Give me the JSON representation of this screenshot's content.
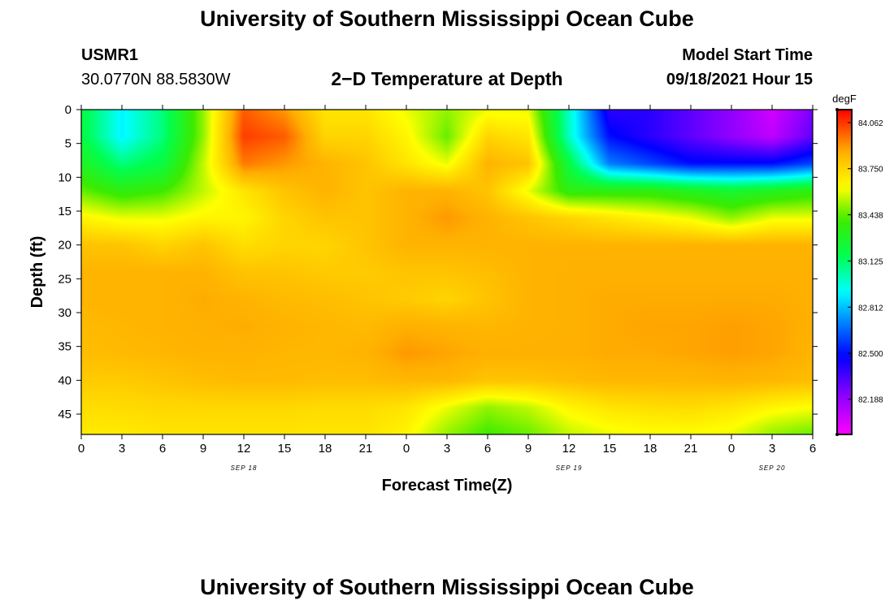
{
  "header": {
    "title": "University of Southern Mississippi Ocean Cube",
    "station_id": "USMR1",
    "location": "30.0770N  88.5830W",
    "plot_title": "2−D Temperature at Depth",
    "start_label": "Model Start Time",
    "start_value": "09/18/2021 Hour 15"
  },
  "footer": {
    "title": "University of Southern Mississippi Ocean Cube"
  },
  "chart_data": {
    "type": "heatmap",
    "title": "2-D Temperature at Depth",
    "xlabel": "Forecast Time(Z)",
    "ylabel": "Depth (ft)",
    "xlim": [
      0,
      54
    ],
    "ylim": [
      0,
      48
    ],
    "x_ticks": [
      0,
      3,
      6,
      9,
      12,
      15,
      18,
      21,
      24,
      27,
      30,
      33,
      36,
      39,
      42,
      45,
      48,
      51,
      54
    ],
    "x_tick_labels": [
      "0",
      "3",
      "6",
      "9",
      "12",
      "15",
      "18",
      "21",
      "0",
      "3",
      "6",
      "9",
      "12",
      "15",
      "18",
      "21",
      "0",
      "3",
      "6"
    ],
    "y_ticks": [
      0,
      5,
      10,
      15,
      20,
      25,
      30,
      35,
      40,
      45
    ],
    "y_tick_labels": [
      "0",
      "5",
      "10",
      "15",
      "20",
      "25",
      "30",
      "35",
      "40",
      "45"
    ],
    "date_labels": [
      {
        "x": 12,
        "text": "SEP 18"
      },
      {
        "x": 36,
        "text": "SEP 19"
      },
      {
        "x": 51,
        "text": "SEP 20"
      }
    ],
    "colorbar": {
      "unit": "degF",
      "min": 81.95,
      "max": 84.15,
      "ticks": [
        84.062,
        83.75,
        83.438,
        83.125,
        82.812,
        82.5,
        82.188
      ],
      "tick_labels": [
        "84.062",
        "83.750",
        "83.438",
        "83.125",
        "82.812",
        "82.500",
        "82.188"
      ]
    },
    "grid_x": [
      0,
      3,
      6,
      9,
      12,
      15,
      18,
      21,
      24,
      27,
      30,
      33,
      36,
      39,
      42,
      45,
      48,
      51,
      54
    ],
    "grid_y": [
      0,
      4,
      8,
      12,
      16,
      20,
      24,
      28,
      32,
      36,
      40,
      44,
      48
    ],
    "values": [
      [
        83.2,
        82.9,
        83.1,
        83.5,
        84.0,
        83.9,
        83.7,
        83.7,
        83.6,
        83.5,
        83.6,
        83.6,
        83.0,
        82.4,
        82.4,
        82.3,
        82.2,
        82.05,
        82.25
      ],
      [
        83.2,
        82.9,
        83.1,
        83.5,
        84.05,
        84.0,
        83.75,
        83.75,
        83.65,
        83.45,
        83.75,
        83.7,
        83.0,
        82.5,
        82.4,
        82.3,
        82.2,
        82.1,
        82.3
      ],
      [
        83.3,
        83.1,
        83.2,
        83.55,
        83.95,
        83.9,
        83.85,
        83.8,
        83.7,
        83.6,
        83.85,
        83.8,
        83.2,
        82.7,
        82.6,
        82.5,
        82.5,
        82.5,
        82.6
      ],
      [
        83.45,
        83.35,
        83.4,
        83.55,
        83.7,
        83.8,
        83.85,
        83.8,
        83.85,
        83.85,
        83.8,
        83.6,
        83.35,
        83.35,
        83.35,
        83.3,
        83.25,
        83.3,
        83.35
      ],
      [
        83.65,
        83.6,
        83.6,
        83.65,
        83.65,
        83.75,
        83.8,
        83.8,
        83.85,
        83.9,
        83.85,
        83.8,
        83.75,
        83.7,
        83.65,
        83.6,
        83.5,
        83.6,
        83.6
      ],
      [
        83.8,
        83.8,
        83.75,
        83.8,
        83.72,
        83.75,
        83.75,
        83.8,
        83.85,
        83.85,
        83.85,
        83.85,
        83.85,
        83.85,
        83.85,
        83.85,
        83.85,
        83.85,
        83.85
      ],
      [
        83.85,
        83.85,
        83.85,
        83.85,
        83.8,
        83.8,
        83.78,
        83.78,
        83.8,
        83.8,
        83.82,
        83.85,
        83.86,
        83.86,
        83.86,
        83.86,
        83.86,
        83.86,
        83.86
      ],
      [
        83.85,
        83.85,
        83.85,
        83.87,
        83.85,
        83.83,
        83.82,
        83.8,
        83.78,
        83.75,
        83.8,
        83.85,
        83.86,
        83.87,
        83.87,
        83.87,
        83.87,
        83.87,
        83.86
      ],
      [
        83.83,
        83.84,
        83.85,
        83.86,
        83.87,
        83.85,
        83.84,
        83.83,
        83.86,
        83.85,
        83.84,
        83.85,
        83.86,
        83.87,
        83.88,
        83.88,
        83.89,
        83.88,
        83.86
      ],
      [
        83.82,
        83.83,
        83.84,
        83.85,
        83.85,
        83.84,
        83.84,
        83.85,
        83.9,
        83.88,
        83.86,
        83.86,
        83.86,
        83.87,
        83.87,
        83.88,
        83.89,
        83.88,
        83.85
      ],
      [
        83.78,
        83.78,
        83.8,
        83.82,
        83.83,
        83.83,
        83.82,
        83.82,
        83.84,
        83.84,
        83.8,
        83.8,
        83.82,
        83.84,
        83.84,
        83.84,
        83.85,
        83.84,
        83.82
      ],
      [
        83.72,
        83.73,
        83.74,
        83.74,
        83.74,
        83.74,
        83.73,
        83.73,
        83.7,
        83.6,
        83.5,
        83.55,
        83.65,
        83.7,
        83.72,
        83.73,
        83.7,
        83.65,
        83.62
      ],
      [
        83.68,
        83.68,
        83.7,
        83.7,
        83.7,
        83.7,
        83.7,
        83.7,
        83.65,
        83.5,
        83.4,
        83.45,
        83.55,
        83.6,
        83.62,
        83.62,
        83.6,
        83.5,
        83.45
      ]
    ]
  }
}
